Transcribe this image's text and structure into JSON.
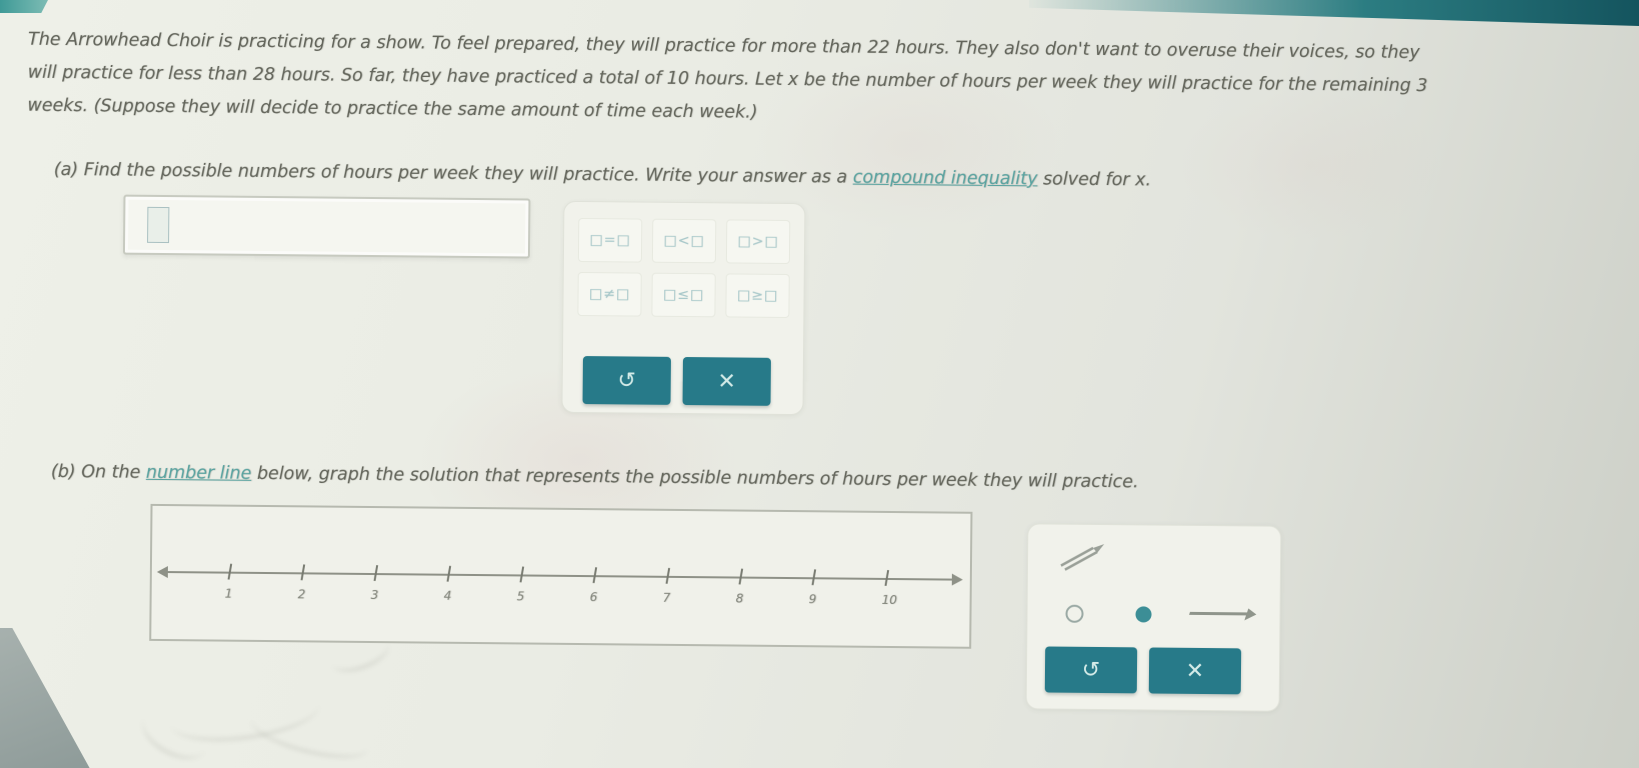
{
  "problem": {
    "lines": [
      "The Arrowhead Choir is practicing for a show. To feel prepared, they will practice for more than 22 hours. They also don't want to overuse their voices, so they",
      "will practice for less than 28 hours. So far, they have practiced a total of 10 hours. Let x be the number of hours per week they will practice for the remaining 3",
      "weeks. (Suppose they will decide to practice the same amount of time each week.)"
    ]
  },
  "part_a": {
    "prefix": "(a) Find the possible numbers of hours per week they will practice. Write your answer as a ",
    "link_text": "compound inequality",
    "suffix": " solved for x."
  },
  "answer_box": {
    "value": ""
  },
  "palette": {
    "relation_buttons": [
      {
        "label": "□=□"
      },
      {
        "label": "□<□"
      },
      {
        "label": "□>□"
      },
      {
        "label": "□≠□"
      },
      {
        "label": "□≤□"
      },
      {
        "label": "□≥□"
      }
    ],
    "undo_icon": "↺",
    "clear_icon": "✕"
  },
  "part_b": {
    "prefix": "(b) On the ",
    "link_text": "number line",
    "suffix": " below, graph the solution that represents the possible numbers of hours per week they will practice."
  },
  "number_line": {
    "tick_labels": [
      "1",
      "2",
      "3",
      "4",
      "5",
      "6",
      "7",
      "8",
      "9",
      "10"
    ]
  },
  "graph_tools": {
    "undo_icon": "↺",
    "clear_icon": "✕"
  },
  "colors": {
    "teal_button": "#277a89",
    "link_teal": "#58a3a0",
    "header_teal": "#1d6f78",
    "palette_glyph": "#a9c9cb",
    "selected_dot": "#3c8e96"
  }
}
